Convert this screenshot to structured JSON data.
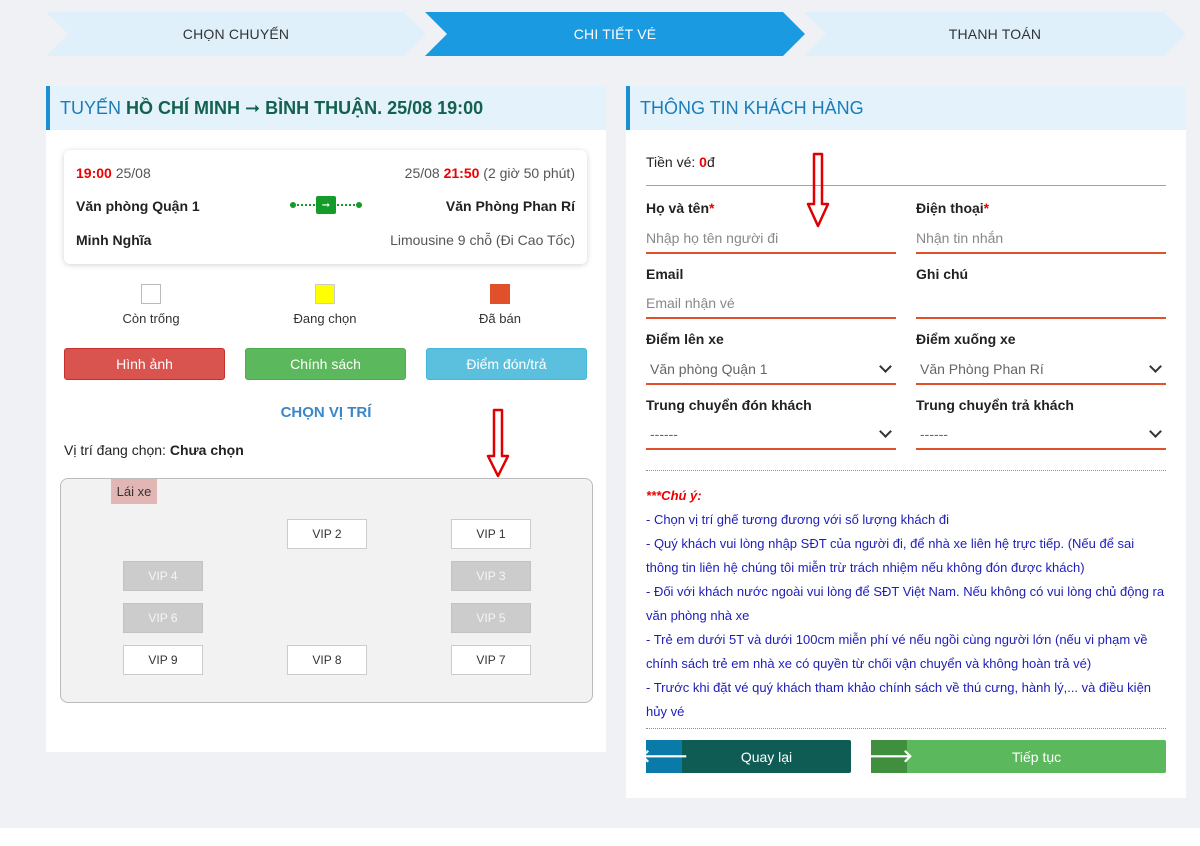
{
  "steps": [
    "CHỌN CHUYẾN",
    "CHI TIẾT VÉ",
    "THANH TOÁN"
  ],
  "left": {
    "route_prefix": "TUYẾN",
    "route_name": "HỒ CHÍ MINH ➞ BÌNH THUẬN",
    "route_date": ". 25/08 19:00",
    "trip": {
      "depart_time": "19:00",
      "depart_date": " 25/08",
      "arrive_date": "25/08 ",
      "arrive_time": "21:50",
      "duration": " (2 giờ 50 phút)",
      "from_office": "Văn phòng Quận 1",
      "to_office": "Văn Phòng Phan Rí",
      "company": "Minh Nghĩa",
      "vehicle": "Limousine 9 chỗ (Đi Cao Tốc)"
    },
    "legend": {
      "empty": "Còn trống",
      "selecting": "Đang chọn",
      "sold": "Đã bán"
    },
    "buttons": {
      "images": "Hình ảnh",
      "policy": "Chính sách",
      "pickup": "Điểm đón/trả"
    },
    "choose_title": "CHỌN VỊ TRÍ",
    "position_label": "Vị trí đang chọn: ",
    "position_value": "Chưa chọn",
    "seatmap": {
      "driver": "Lái xe",
      "seats": {
        "vip1": "VIP 1",
        "vip2": "VIP 2",
        "vip3": "VIP 3",
        "vip4": "VIP 4",
        "vip5": "VIP 5",
        "vip6": "VIP 6",
        "vip7": "VIP 7",
        "vip8": "VIP 8",
        "vip9": "VIP 9"
      },
      "unavailable": [
        "VIP 3",
        "VIP 4",
        "VIP 5",
        "VIP 6"
      ]
    }
  },
  "right": {
    "title": "THÔNG TIN KHÁCH HÀNG",
    "fee_label": "Tiền vé: ",
    "fee_value": "0",
    "fee_unit": "đ",
    "fields": {
      "name_label": "Họ và tên",
      "name_placeholder": "Nhập họ tên người đi",
      "phone_label": "Điện thoại",
      "phone_placeholder": "Nhận tin nhắn",
      "email_label": "Email",
      "email_placeholder": "Email nhận vé",
      "note_label": "Ghi chú",
      "pickup_label": "Điểm lên xe",
      "pickup_value": "Văn phòng Quận 1",
      "dropoff_label": "Điểm xuống xe",
      "dropoff_value": "Văn Phòng Phan Rí",
      "transfer_pick_label": "Trung chuyển đón khách",
      "transfer_pick_value": "------",
      "transfer_drop_label": "Trung chuyển trả khách",
      "transfer_drop_value": "------",
      "required_mark": "*"
    },
    "notes": {
      "title": "***Chú ý:",
      "items": [
        "- Chọn vị trí ghế tương đương với số lượng khách đi",
        "- Quý khách vui lòng nhập SĐT của người đi, để nhà xe liên hệ trực tiếp. (Nếu để sai thông tin liên hệ chúng tôi miễn trừ trách nhiệm nếu không đón được khách)",
        "- Đối với khách nước ngoài vui lòng để SĐT Việt Nam. Nếu không có vui lòng chủ động ra văn phòng nhà xe",
        "- Trẻ em dưới 5T và dưới 100cm miễn phí vé nếu ngồi cùng người lớn (nếu vi phạm về chính sách trẻ em nhà xe có quyền từ chối vận chuyển và không hoàn trả vé)",
        "- Trước khi đặt vé quý khách tham khảo chính sách về thú cưng, hành lý,... và điều kiện hủy vé"
      ]
    },
    "buttons": {
      "back": "Quay lại",
      "next": "Tiếp tục"
    }
  },
  "icons": {
    "back": "arrow-left-icon",
    "next": "arrow-right-icon",
    "bus": "bus-icon"
  },
  "colors": {
    "accent": "#1a9ae0",
    "route_green": "#13614e",
    "sold": "#e0502a",
    "selecting": "#ffff00",
    "note_blue": "#1d1dbb",
    "annotation": "#e00000"
  }
}
